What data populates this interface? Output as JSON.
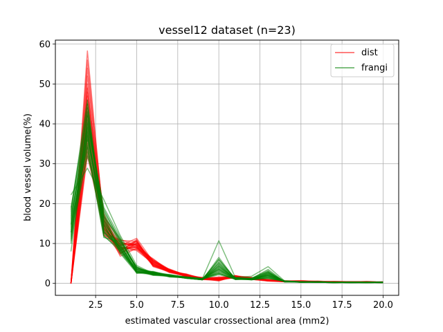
{
  "chart_data": {
    "type": "line",
    "title": "vessel12 dataset (n=23)",
    "xlabel": "estimated vascular crossectional area (mm2)",
    "ylabel": "blood vessel volume(%)",
    "xlim": [
      0.05,
      20.95
    ],
    "ylim": [
      -3,
      61
    ],
    "xticks": [
      2.5,
      5.0,
      7.5,
      10.0,
      12.5,
      15.0,
      17.5,
      20.0
    ],
    "xtick_labels": [
      "2.5",
      "5.0",
      "7.5",
      "10.0",
      "12.5",
      "15.0",
      "17.5",
      "20.0"
    ],
    "yticks": [
      0,
      10,
      20,
      30,
      40,
      50,
      60
    ],
    "ytick_labels": [
      "0",
      "10",
      "20",
      "30",
      "40",
      "50",
      "60"
    ],
    "grid": true,
    "legend_position": "upper right",
    "x": [
      1,
      2,
      3,
      4,
      5,
      6,
      7,
      8,
      9,
      10,
      11,
      12,
      13,
      14,
      15,
      16,
      17,
      18,
      19,
      20
    ],
    "legend": [
      {
        "label": "dist",
        "color": "#ff0000"
      },
      {
        "label": "frangi",
        "color": "#008000"
      }
    ],
    "series_groups": [
      {
        "name": "dist",
        "color": "#ff0000",
        "opacity": 0.5,
        "lines": [
          [
            0.0,
            58.3,
            14.5,
            9.5,
            11.3,
            5.5,
            3.2,
            2.0,
            1.2,
            1.0,
            1.8,
            1.4,
            0.7,
            0.5,
            0.6,
            0.5,
            0.4,
            0.4,
            0.4,
            0.3
          ],
          [
            0.0,
            56.0,
            15.5,
            8.5,
            10.2,
            4.8,
            3.0,
            2.2,
            1.0,
            1.4,
            1.6,
            1.2,
            0.9,
            0.6,
            0.5,
            0.4,
            0.4,
            0.3,
            0.4,
            0.3
          ],
          [
            0.0,
            54.0,
            13.0,
            10.5,
            9.0,
            6.0,
            3.4,
            1.8,
            1.4,
            0.8,
            2.0,
            1.0,
            0.8,
            0.6,
            0.7,
            0.5,
            0.3,
            0.4,
            0.3,
            0.4
          ],
          [
            0.0,
            52.0,
            16.5,
            9.0,
            8.5,
            5.0,
            2.8,
            2.4,
            1.1,
            1.2,
            1.5,
            1.3,
            0.6,
            0.4,
            0.5,
            0.6,
            0.4,
            0.3,
            0.5,
            0.3
          ],
          [
            0.0,
            50.0,
            12.5,
            11.0,
            9.5,
            4.5,
            3.6,
            2.0,
            1.3,
            1.6,
            1.7,
            1.1,
            1.0,
            0.5,
            0.6,
            0.4,
            0.5,
            0.4,
            0.3,
            0.3
          ],
          [
            0.0,
            49.0,
            14.0,
            7.5,
            10.0,
            5.8,
            3.1,
            1.9,
            1.2,
            0.6,
            1.9,
            1.5,
            0.8,
            0.7,
            0.4,
            0.5,
            0.3,
            0.4,
            0.4,
            0.2
          ],
          [
            0.0,
            48.0,
            17.5,
            8.0,
            11.0,
            4.2,
            2.9,
            2.1,
            1.0,
            1.1,
            1.4,
            1.2,
            0.7,
            0.5,
            0.5,
            0.3,
            0.4,
            0.3,
            0.3,
            0.3
          ],
          [
            0.0,
            47.0,
            13.5,
            9.8,
            9.8,
            5.2,
            3.3,
            1.7,
            1.5,
            1.3,
            1.6,
            1.0,
            0.9,
            0.4,
            0.6,
            0.4,
            0.4,
            0.4,
            0.4,
            0.3
          ],
          [
            0.0,
            46.0,
            15.0,
            6.8,
            8.8,
            6.2,
            3.0,
            2.3,
            1.1,
            0.9,
            1.8,
            1.3,
            0.6,
            0.6,
            0.5,
            0.5,
            0.3,
            0.3,
            0.3,
            0.4
          ],
          [
            0.0,
            45.0,
            12.0,
            10.8,
            10.5,
            4.6,
            2.7,
            1.8,
            1.3,
            1.5,
            1.5,
            1.1,
            0.8,
            0.5,
            0.4,
            0.4,
            0.5,
            0.4,
            0.4,
            0.3
          ],
          [
            0.0,
            44.0,
            16.0,
            8.8,
            9.2,
            5.4,
            3.5,
            2.0,
            1.0,
            0.7,
            1.7,
            1.4,
            0.7,
            0.4,
            0.6,
            0.3,
            0.4,
            0.3,
            0.3,
            0.2
          ],
          [
            0.0,
            43.0,
            14.8,
            9.2,
            8.2,
            5.0,
            3.2,
            2.2,
            1.2,
            1.0,
            1.6,
            1.2,
            0.9,
            0.6,
            0.5,
            0.5,
            0.3,
            0.4,
            0.4,
            0.3
          ],
          [
            0.0,
            42.0,
            13.2,
            7.2,
            10.8,
            4.4,
            2.9,
            1.9,
            1.4,
            1.2,
            1.9,
            1.0,
            0.6,
            0.5,
            0.4,
            0.4,
            0.4,
            0.3,
            0.3,
            0.3
          ],
          [
            0.0,
            41.0,
            17.0,
            10.2,
            9.6,
            5.6,
            3.4,
            2.1,
            1.1,
            0.8,
            1.5,
            1.3,
            0.8,
            0.4,
            0.5,
            0.3,
            0.3,
            0.4,
            0.3,
            0.2
          ],
          [
            0.0,
            40.0,
            12.8,
            8.4,
            9.0,
            4.9,
            3.1,
            1.8,
            1.2,
            1.4,
            1.7,
            1.1,
            0.7,
            0.6,
            0.6,
            0.4,
            0.4,
            0.3,
            0.4,
            0.3
          ],
          [
            0.0,
            39.0,
            15.8,
            9.6,
            10.4,
            5.1,
            2.8,
            2.0,
            1.0,
            1.0,
            1.4,
            1.2,
            0.8,
            0.5,
            0.4,
            0.5,
            0.3,
            0.3,
            0.3,
            0.3
          ],
          [
            0.0,
            38.0,
            14.2,
            7.8,
            8.6,
            5.7,
            3.3,
            2.3,
            1.3,
            0.9,
            1.8,
            1.4,
            0.9,
            0.4,
            0.5,
            0.4,
            0.4,
            0.4,
            0.3,
            0.2
          ],
          [
            0.0,
            37.0,
            13.8,
            10.0,
            9.4,
            4.3,
            3.0,
            1.7,
            1.1,
            1.2,
            1.6,
            1.0,
            0.6,
            0.5,
            0.6,
            0.3,
            0.3,
            0.3,
            0.4,
            0.3
          ],
          [
            0.0,
            36.0,
            16.2,
            8.2,
            10.6,
            5.3,
            3.2,
            2.2,
            1.4,
            1.1,
            1.5,
            1.3,
            0.7,
            0.6,
            0.4,
            0.4,
            0.4,
            0.3,
            0.3,
            0.3
          ],
          [
            0.0,
            35.0,
            12.2,
            9.0,
            8.9,
            4.7,
            2.9,
            1.9,
            1.0,
            0.8,
            1.7,
            1.1,
            0.8,
            0.4,
            0.5,
            0.5,
            0.3,
            0.4,
            0.3,
            0.2
          ],
          [
            0.0,
            34.0,
            15.2,
            9.4,
            9.7,
            5.9,
            3.5,
            2.0,
            1.2,
            1.3,
            1.9,
            1.2,
            0.9,
            0.5,
            0.6,
            0.4,
            0.4,
            0.3,
            0.4,
            0.3
          ],
          [
            0.0,
            33.0,
            14.6,
            7.6,
            10.1,
            4.5,
            3.1,
            2.1,
            1.1,
            1.0,
            1.4,
            1.4,
            0.6,
            0.6,
            0.4,
            0.3,
            0.3,
            0.3,
            0.3,
            0.3
          ],
          [
            0.0,
            32.0,
            13.6,
            8.6,
            9.3,
            5.5,
            3.0,
            1.8,
            1.3,
            0.9,
            1.6,
            1.0,
            0.7,
            0.4,
            0.5,
            0.4,
            0.4,
            0.4,
            0.3,
            0.2
          ]
        ]
      },
      {
        "name": "frangi",
        "color": "#008000",
        "opacity": 0.5,
        "lines": [
          [
            22.2,
            28.9,
            21.0,
            12.0,
            4.5,
            2.5,
            2.0,
            1.6,
            1.2,
            10.7,
            1.5,
            1.8,
            4.2,
            0.6,
            0.4,
            0.3,
            0.3,
            0.3,
            0.2,
            0.3
          ],
          [
            18.5,
            46.0,
            12.0,
            8.0,
            3.0,
            2.8,
            1.8,
            1.4,
            1.0,
            6.0,
            1.2,
            1.0,
            2.5,
            0.5,
            0.3,
            0.4,
            0.2,
            0.3,
            0.3,
            0.2
          ],
          [
            14.0,
            44.0,
            14.0,
            9.0,
            3.5,
            2.2,
            2.1,
            1.5,
            1.1,
            5.0,
            1.0,
            1.2,
            3.0,
            0.4,
            0.4,
            0.3,
            0.3,
            0.2,
            0.3,
            0.3
          ],
          [
            16.0,
            42.0,
            16.0,
            10.0,
            2.5,
            3.0,
            1.9,
            1.3,
            0.9,
            4.0,
            1.3,
            1.1,
            2.0,
            0.6,
            0.3,
            0.3,
            0.2,
            0.3,
            0.2,
            0.3
          ],
          [
            12.0,
            40.0,
            18.0,
            11.0,
            4.0,
            2.4,
            2.0,
            1.6,
            1.2,
            3.5,
            1.1,
            0.9,
            1.5,
            0.5,
            0.4,
            0.4,
            0.3,
            0.3,
            0.3,
            0.2
          ],
          [
            10.0,
            38.0,
            13.0,
            8.5,
            2.8,
            2.6,
            1.7,
            1.4,
            1.0,
            3.0,
            1.4,
            1.3,
            2.8,
            0.4,
            0.3,
            0.3,
            0.3,
            0.2,
            0.2,
            0.3
          ],
          [
            17.0,
            36.0,
            15.0,
            9.5,
            3.2,
            2.0,
            1.8,
            1.5,
            1.1,
            2.5,
            1.0,
            1.0,
            1.8,
            0.6,
            0.4,
            0.3,
            0.2,
            0.3,
            0.3,
            0.3
          ],
          [
            15.0,
            34.0,
            11.5,
            10.5,
            3.8,
            2.9,
            2.1,
            1.3,
            0.9,
            4.5,
            1.2,
            1.1,
            2.2,
            0.5,
            0.3,
            0.4,
            0.3,
            0.2,
            0.2,
            0.2
          ],
          [
            13.0,
            32.0,
            17.0,
            7.5,
            2.6,
            2.3,
            1.9,
            1.6,
            1.2,
            5.5,
            1.3,
            1.2,
            3.5,
            0.4,
            0.4,
            0.3,
            0.3,
            0.3,
            0.3,
            0.3
          ],
          [
            11.0,
            41.0,
            19.0,
            11.5,
            3.4,
            2.7,
            1.6,
            1.4,
            1.0,
            2.2,
            1.1,
            0.9,
            1.2,
            0.6,
            0.3,
            0.3,
            0.2,
            0.3,
            0.2,
            0.3
          ],
          [
            19.0,
            43.0,
            12.5,
            9.2,
            4.2,
            2.1,
            2.0,
            1.5,
            1.1,
            3.8,
            1.4,
            1.0,
            2.6,
            0.5,
            0.4,
            0.4,
            0.3,
            0.2,
            0.3,
            0.2
          ],
          [
            16.5,
            39.0,
            14.5,
            8.2,
            2.9,
            2.5,
            1.8,
            1.3,
            0.9,
            6.5,
            1.0,
            1.3,
            1.9,
            0.4,
            0.3,
            0.3,
            0.3,
            0.3,
            0.2,
            0.3
          ],
          [
            14.5,
            37.0,
            16.5,
            10.8,
            3.6,
            2.8,
            2.2,
            1.6,
            1.2,
            2.8,
            1.2,
            1.1,
            2.4,
            0.6,
            0.4,
            0.3,
            0.2,
            0.2,
            0.3,
            0.3
          ],
          [
            12.5,
            35.0,
            13.5,
            9.8,
            3.1,
            2.2,
            1.7,
            1.4,
            1.0,
            4.2,
            1.3,
            0.9,
            1.6,
            0.5,
            0.3,
            0.4,
            0.3,
            0.3,
            0.2,
            0.2
          ],
          [
            18.0,
            45.0,
            15.5,
            8.8,
            2.7,
            2.6,
            1.9,
            1.5,
            1.1,
            3.2,
            1.1,
            1.2,
            2.9,
            0.4,
            0.4,
            0.3,
            0.3,
            0.2,
            0.3,
            0.3
          ],
          [
            15.5,
            40.5,
            17.5,
            10.2,
            3.9,
            2.4,
            2.0,
            1.3,
            0.9,
            5.2,
            1.4,
            1.0,
            2.1,
            0.6,
            0.3,
            0.3,
            0.2,
            0.3,
            0.2,
            0.3
          ],
          [
            13.5,
            38.5,
            12.8,
            9.4,
            3.3,
            2.9,
            1.8,
            1.6,
            1.2,
            2.6,
            1.0,
            1.1,
            1.4,
            0.5,
            0.4,
            0.4,
            0.3,
            0.3,
            0.3,
            0.2
          ],
          [
            11.5,
            36.5,
            14.8,
            7.8,
            2.8,
            2.3,
            2.1,
            1.4,
            1.0,
            4.8,
            1.2,
            1.3,
            3.2,
            0.4,
            0.3,
            0.3,
            0.3,
            0.2,
            0.2,
            0.3
          ],
          [
            17.5,
            42.5,
            16.8,
            11.2,
            3.7,
            2.7,
            1.7,
            1.5,
            1.1,
            3.4,
            1.3,
            0.9,
            2.3,
            0.6,
            0.4,
            0.3,
            0.2,
            0.3,
            0.3,
            0.3
          ],
          [
            14.8,
            34.5,
            11.8,
            8.6,
            3.0,
            2.1,
            1.9,
            1.3,
            0.9,
            6.0,
            1.1,
            1.2,
            1.7,
            0.5,
            0.3,
            0.4,
            0.3,
            0.2,
            0.2,
            0.2
          ],
          [
            12.8,
            39.5,
            18.5,
            10.6,
            4.1,
            2.5,
            2.0,
            1.6,
            1.2,
            2.4,
            1.4,
            1.0,
            2.7,
            0.4,
            0.4,
            0.3,
            0.3,
            0.3,
            0.3,
            0.3
          ],
          [
            10.5,
            33.0,
            13.2,
            9.0,
            2.9,
            2.8,
            1.8,
            1.4,
            1.0,
            4.4,
            1.0,
            1.1,
            2.0,
            0.6,
            0.3,
            0.3,
            0.2,
            0.2,
            0.2,
            0.3
          ],
          [
            8.0,
            37.5,
            15.8,
            8.4,
            3.5,
            2.3,
            2.2,
            1.5,
            1.1,
            3.6,
            1.2,
            1.3,
            1.3,
            0.5,
            0.4,
            0.4,
            0.3,
            0.3,
            0.3,
            0.2
          ]
        ]
      }
    ]
  }
}
